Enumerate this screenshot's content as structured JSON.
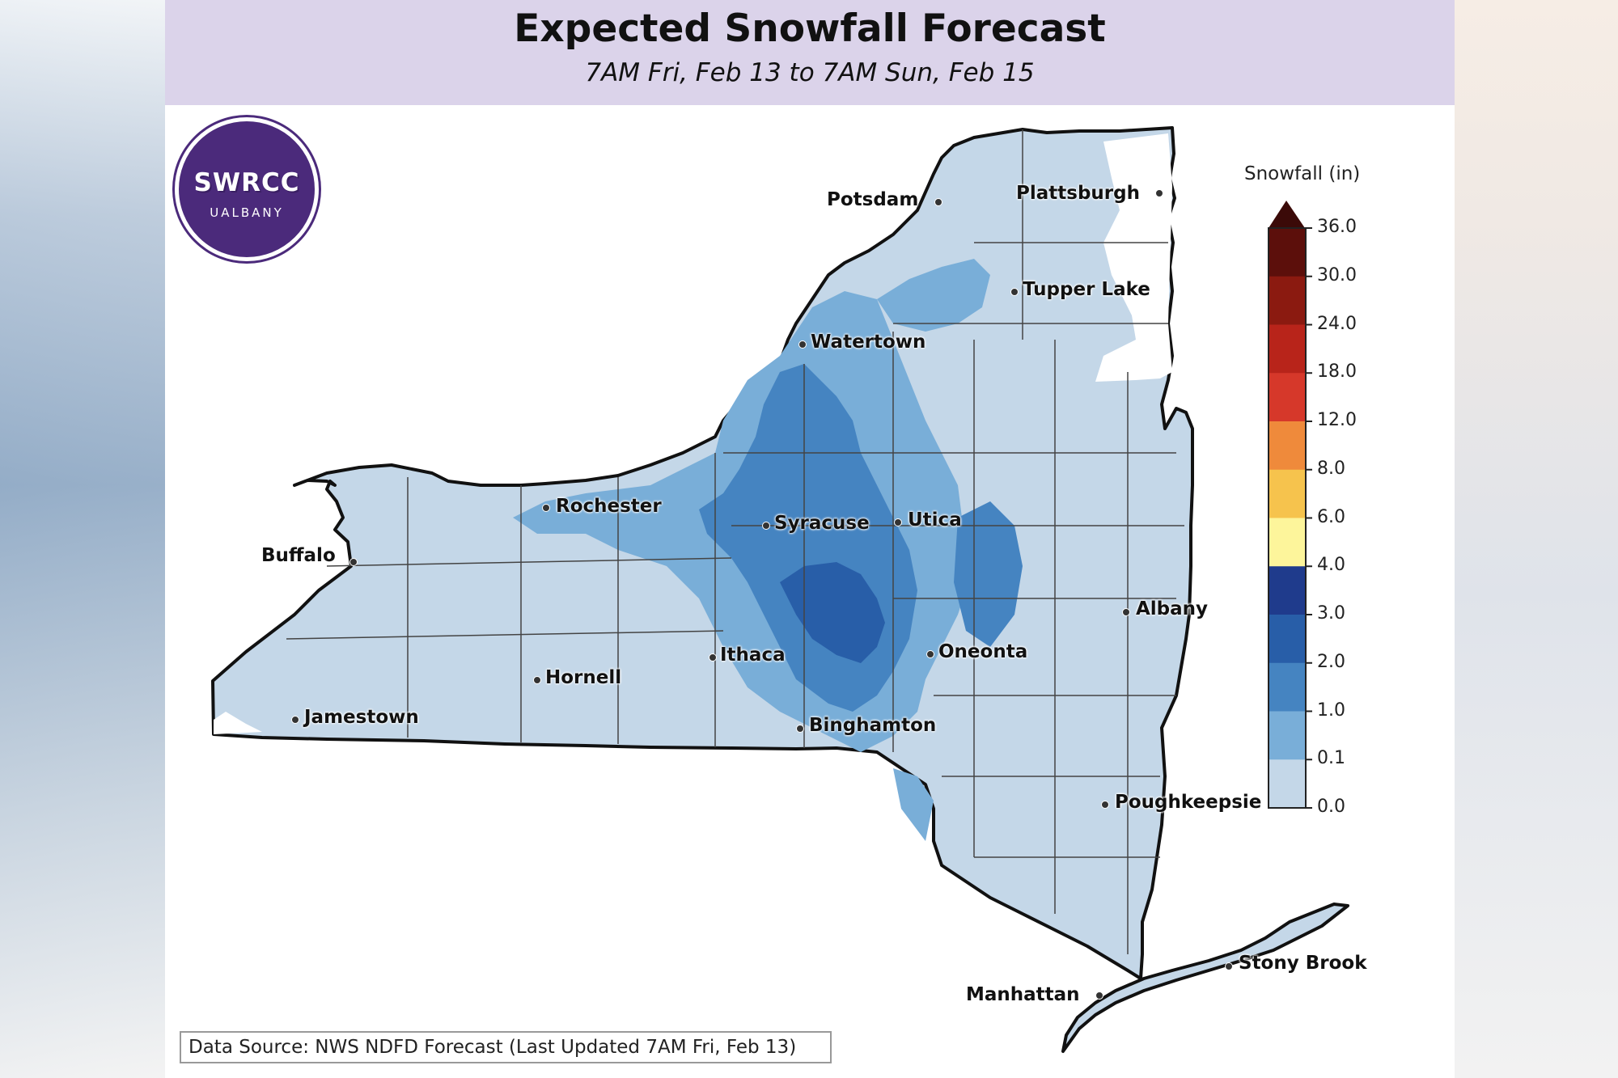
{
  "header": {
    "title": "Expected Snowfall Forecast",
    "subtitle": "7AM Fri, Feb 13 to 7AM Sun, Feb 15"
  },
  "logo": {
    "text": "SWRCC",
    "sub": "UALBANY",
    "color": "#4b2a7b",
    "accent": "#e6a817"
  },
  "legend": {
    "title": "Snowfall (in)",
    "ticks": [
      "36.0",
      "30.0",
      "24.0",
      "18.0",
      "12.0",
      "8.0",
      "6.0",
      "4.0",
      "3.0",
      "2.0",
      "1.0",
      "0.1",
      "0.0"
    ],
    "colors": [
      "#5c0f0b",
      "#8b1a10",
      "#b8241a",
      "#d6382a",
      "#ef8a3b",
      "#f6c34d",
      "#fdf59b",
      "#1f3b8c",
      "#285ea8",
      "#4584c1",
      "#79aed8",
      "#c4d7e8",
      "#ffffff"
    ]
  },
  "cities": [
    {
      "name": "Potsdam"
    },
    {
      "name": "Plattsburgh"
    },
    {
      "name": "Tupper Lake"
    },
    {
      "name": "Watertown"
    },
    {
      "name": "Rochester"
    },
    {
      "name": "Syracuse"
    },
    {
      "name": "Utica"
    },
    {
      "name": "Buffalo"
    },
    {
      "name": "Albany"
    },
    {
      "name": "Ithaca"
    },
    {
      "name": "Oneonta"
    },
    {
      "name": "Hornell"
    },
    {
      "name": "Jamestown"
    },
    {
      "name": "Binghamton"
    },
    {
      "name": "Poughkeepsie"
    },
    {
      "name": "Stony Brook"
    },
    {
      "name": "Manhattan"
    }
  ],
  "source": "Data Source: NWS NDFD Forecast (Last Updated 7AM Fri, Feb 13)"
}
